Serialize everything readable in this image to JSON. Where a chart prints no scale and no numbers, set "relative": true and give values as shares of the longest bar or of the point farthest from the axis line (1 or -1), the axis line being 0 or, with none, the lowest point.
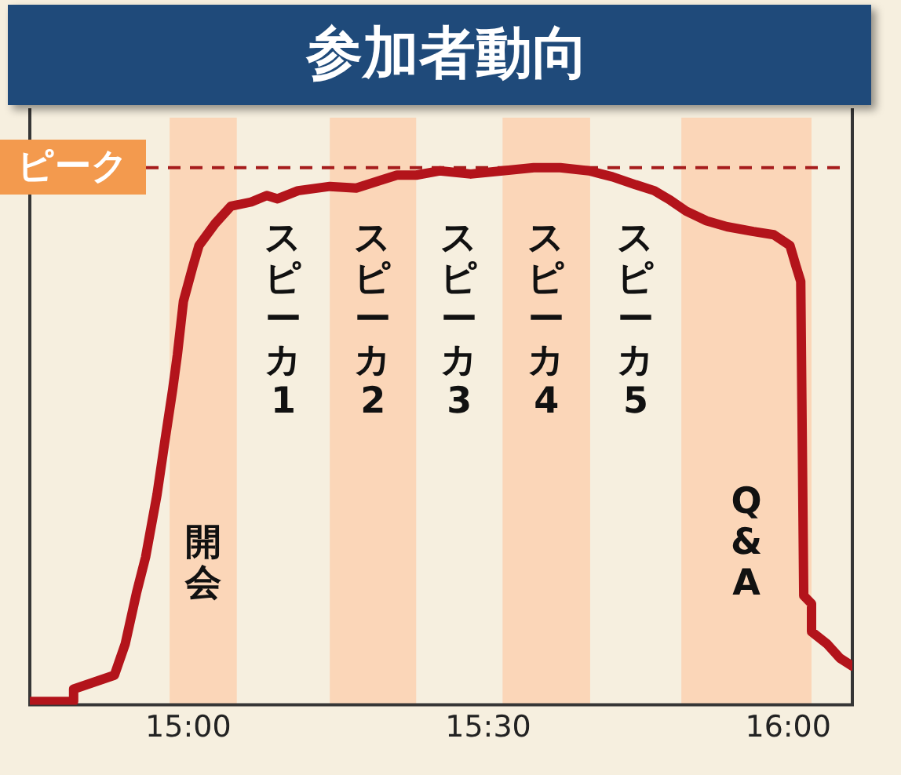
{
  "chart_data": {
    "type": "line",
    "title": "参加者動向",
    "relative": true,
    "x": [
      14.736,
      14.809,
      14.809,
      14.877,
      14.895,
      14.914,
      14.929,
      14.948,
      14.961,
      14.974,
      14.982,
      14.992,
      15.008,
      15.018,
      15.045,
      15.071,
      15.105,
      15.131,
      15.149,
      15.183,
      15.236,
      15.28,
      15.322,
      15.348,
      15.38,
      15.419,
      15.471,
      15.524,
      15.576,
      15.62,
      15.668,
      15.707,
      15.746,
      15.777,
      15.804,
      15.83,
      15.864,
      15.898,
      15.942,
      15.976,
      16.003,
      16.013,
      16.021,
      16.026,
      16.039,
      16.039,
      16.065,
      16.086,
      16.107
    ],
    "xlim": [
      14.736,
      16.107
    ],
    "xticks": [
      {
        "value": 15,
        "label": "15:00"
      },
      {
        "value": 15.5,
        "label": "15:30"
      },
      {
        "value": 16,
        "label": "16:00"
      }
    ],
    "series": [
      {
        "color": "#b3141b",
        "values": [
          0.006,
          0.006,
          0.029,
          0.055,
          0.113,
          0.209,
          0.275,
          0.391,
          0.49,
          0.586,
          0.652,
          0.751,
          0.817,
          0.855,
          0.896,
          0.928,
          0.936,
          0.948,
          0.942,
          0.957,
          0.965,
          0.962,
          0.977,
          0.986,
          0.986,
          0.994,
          0.988,
          0.994,
          1,
          1,
          0.994,
          0.983,
          0.968,
          0.957,
          0.939,
          0.919,
          0.901,
          0.89,
          0.881,
          0.875,
          0.855,
          0.817,
          0.788,
          0.203,
          0.188,
          0.136,
          0.113,
          0.087,
          0.072
        ]
      }
    ],
    "bands": [
      {
        "axis": "x",
        "from": 14.969,
        "to": 15.081,
        "label": "開会",
        "color": "#fbd6b8"
      },
      {
        "axis": "x",
        "from": 15.236,
        "to": 15.38,
        "label": "スピーカ2",
        "color": "#fbd6b8"
      },
      {
        "axis": "x",
        "from": 15.524,
        "to": 15.67,
        "label": "スピーカ4",
        "color": "#fbd6b8"
      },
      {
        "axis": "x",
        "from": 15.822,
        "to": 16.039,
        "label": "Q&A",
        "color": "#fbd6b8"
      }
    ],
    "annotations": [
      "スピーカ1",
      "スピーカ3",
      "スピーカ5"
    ],
    "ref_lines": [
      {
        "axis": "y",
        "value": 1,
        "label": "ピーク",
        "color": "#a61c1c",
        "line_style": "dashed"
      }
    ]
  }
}
